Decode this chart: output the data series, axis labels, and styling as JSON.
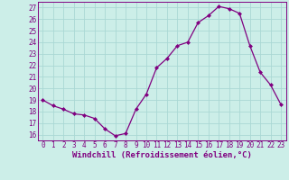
{
  "x": [
    0,
    1,
    2,
    3,
    4,
    5,
    6,
    7,
    8,
    9,
    10,
    11,
    12,
    13,
    14,
    15,
    16,
    17,
    18,
    19,
    20,
    21,
    22,
    23
  ],
  "y": [
    19,
    18.5,
    18.2,
    17.8,
    17.7,
    17.4,
    16.5,
    15.9,
    16.1,
    18.2,
    19.5,
    21.8,
    22.6,
    23.7,
    24.0,
    25.7,
    26.3,
    27.1,
    26.9,
    26.5,
    23.7,
    21.4,
    20.3,
    18.6
  ],
  "line_color": "#800080",
  "marker": "D",
  "marker_size": 2.0,
  "bg_color": "#cceee8",
  "grid_color": "#aad8d4",
  "xlabel": "Windchill (Refroidissement éolien,°C)",
  "xlim": [
    -0.5,
    23.5
  ],
  "ylim": [
    15.5,
    27.5
  ],
  "yticks": [
    16,
    17,
    18,
    19,
    20,
    21,
    22,
    23,
    24,
    25,
    26,
    27
  ],
  "xticks": [
    0,
    1,
    2,
    3,
    4,
    5,
    6,
    7,
    8,
    9,
    10,
    11,
    12,
    13,
    14,
    15,
    16,
    17,
    18,
    19,
    20,
    21,
    22,
    23
  ],
  "xtick_labels": [
    "0",
    "1",
    "2",
    "3",
    "4",
    "5",
    "6",
    "7",
    "8",
    "9",
    "10",
    "11",
    "12",
    "13",
    "14",
    "15",
    "16",
    "17",
    "18",
    "19",
    "20",
    "21",
    "22",
    "23"
  ],
  "title_fontsize": 6.5,
  "tick_fontsize": 5.5,
  "linewidth": 0.9
}
